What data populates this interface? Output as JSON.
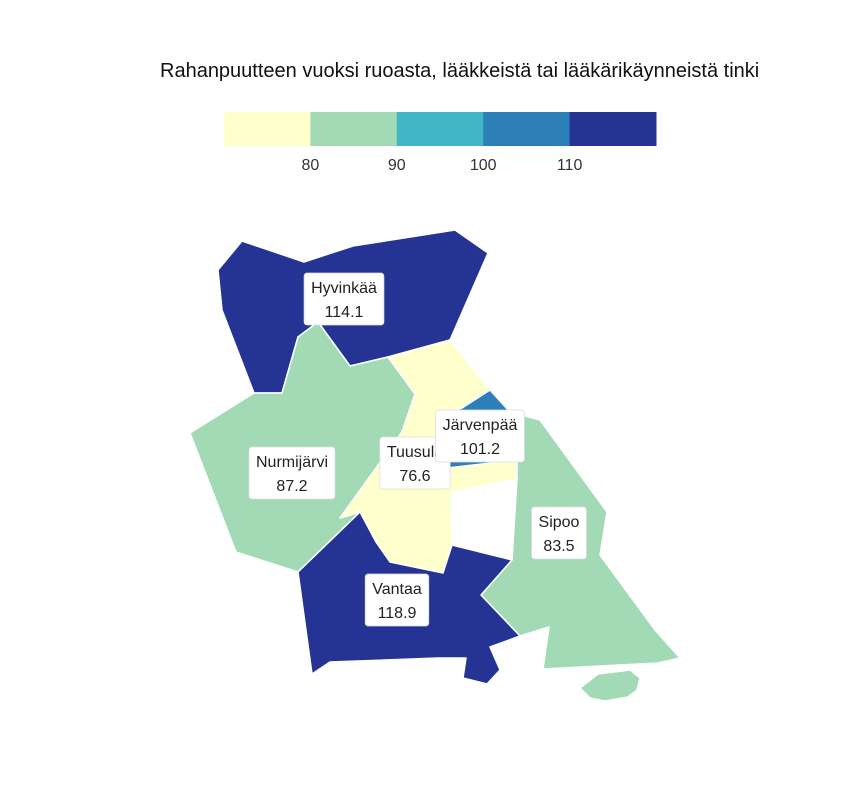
{
  "title": "Rahanpuutteen vuoksi ruoasta, lääkkeistä tai lääkärikäynneistä tinki",
  "legend": {
    "ticks": [
      "80",
      "90",
      "100",
      "110"
    ],
    "colors": [
      "#ffffcc",
      "#a1dab4",
      "#41b6c4",
      "#2c7fb8",
      "#253494"
    ]
  },
  "chart_data": {
    "type": "choropleth",
    "regions": [
      {
        "name": "Hyvinkää",
        "value": 114.1,
        "color": "#253494"
      },
      {
        "name": "Nurmijärvi",
        "value": 87.2,
        "color": "#a1dab4"
      },
      {
        "name": "Tuusula",
        "value": 76.6,
        "color": "#ffffcc"
      },
      {
        "name": "Järvenpää",
        "value": 101.2,
        "color": "#2c7fb8"
      },
      {
        "name": "Sipoo",
        "value": 83.5,
        "color": "#a1dab4"
      },
      {
        "name": "Vantaa",
        "value": 118.9,
        "color": "#253494"
      }
    ],
    "labels": [
      {
        "name": "Hyvinkää",
        "value": "114.1"
      },
      {
        "name": "Nurmijärvi",
        "value": "87.2"
      },
      {
        "name": "Tuusula",
        "value": "76.6"
      },
      {
        "name": "Järvenpää",
        "value": "101.2"
      },
      {
        "name": "Sipoo",
        "value": "83.5"
      },
      {
        "name": "Vantaa",
        "value": "118.9"
      }
    ]
  }
}
